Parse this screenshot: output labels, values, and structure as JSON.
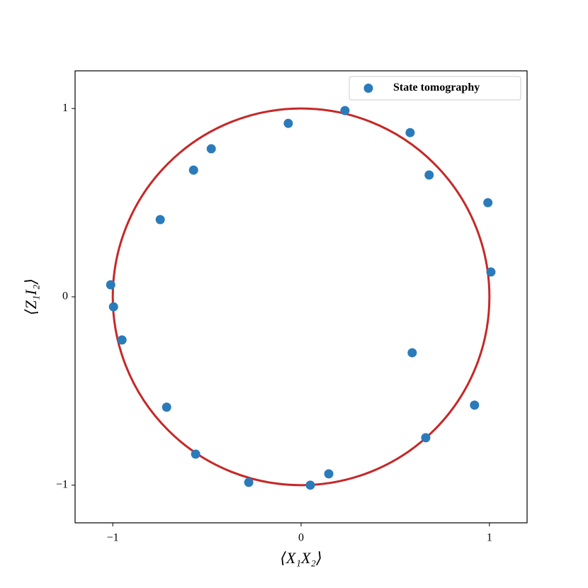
{
  "chart_data": {
    "type": "scatter",
    "xlabel": "⟨X₁X₂⟩",
    "ylabel": "⟨Z₁I₂⟩",
    "xlim": [
      -1.2,
      1.2
    ],
    "ylim": [
      -1.2,
      1.2
    ],
    "xticks": [
      {
        "value": -1,
        "label": "−1"
      },
      0,
      1
    ],
    "yticks": [
      {
        "value": -1,
        "label": "−1"
      },
      0,
      1
    ],
    "legend": "upper right",
    "circle": {
      "center": [
        0,
        0
      ],
      "radius": 1,
      "color": "#c62828"
    },
    "series": [
      {
        "name": "State tomography",
        "color": "#2b7bba",
        "x": [
          -0.068,
          0.233,
          0.579,
          0.68,
          0.992,
          1.008,
          -0.477,
          -0.571,
          -0.748,
          -1.011,
          -0.996,
          -0.951,
          0.59,
          -0.714,
          0.921,
          0.662,
          -0.56,
          0.147,
          -0.278,
          0.049
        ],
        "values": [
          0.921,
          0.989,
          0.872,
          0.647,
          0.5,
          0.132,
          0.786,
          0.673,
          0.41,
          0.064,
          -0.053,
          -0.229,
          -0.297,
          -0.586,
          -0.575,
          -0.748,
          -0.835,
          -0.94,
          -0.985,
          -1.0
        ]
      }
    ]
  }
}
